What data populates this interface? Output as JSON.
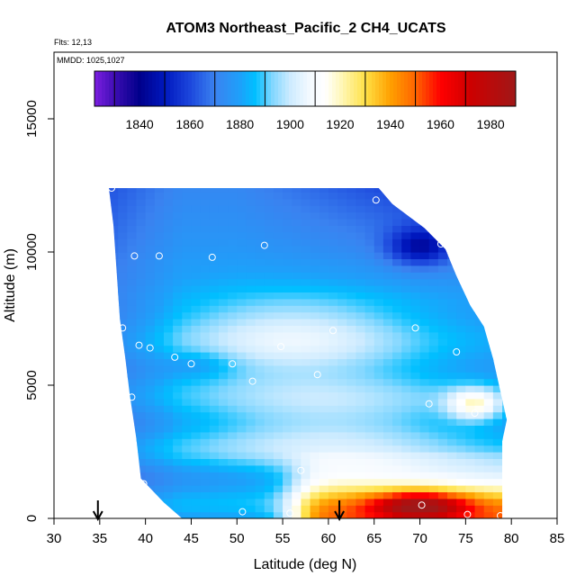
{
  "chart_data": {
    "type": "heatmap",
    "title": "ATOM3 Northeast_Pacific_2 CH4_UCATS",
    "flights_label": "Flts: 12,13",
    "dates_label": "MMDD: 1025,1027",
    "xlabel": "Latitude (deg N)",
    "ylabel": "Altitude (m)",
    "xlim": [
      30,
      85
    ],
    "ylim": [
      0,
      17500
    ],
    "x_ticks": [
      "30",
      "35",
      "40",
      "45",
      "50",
      "55",
      "60",
      "65",
      "70",
      "75",
      "80",
      "85"
    ],
    "y_ticks": [
      "0",
      "5000",
      "10000",
      "15000"
    ],
    "colorbar": {
      "range": [
        1822,
        1990
      ],
      "ticks": [
        "1840",
        "1860",
        "1880",
        "1900",
        "1920",
        "1940",
        "1960",
        "1980"
      ],
      "tick_values": [
        1840,
        1860,
        1880,
        1900,
        1920,
        1940,
        1960,
        1980
      ],
      "colors": [
        "#7b1fe0",
        "#00008b",
        "#1a3fd6",
        "#3a8ff0",
        "#00bfff",
        "#e8f8ff",
        "#ffffff",
        "#ffe34d",
        "#ff9d00",
        "#ff0000",
        "#a01818"
      ]
    },
    "arrows": [
      {
        "lat": 34.8,
        "label": "",
        "name": "arrow-lat-34.8"
      },
      {
        "lat": 61.2,
        "label": "",
        "name": "arrow-lat-61.2"
      }
    ],
    "domain_boundary": {
      "left": [
        [
          36.0,
          12400
        ],
        [
          36.5,
          11000
        ],
        [
          36.8,
          9500
        ],
        [
          37.2,
          7500
        ],
        [
          37.8,
          6000
        ],
        [
          38.3,
          4600
        ],
        [
          39.0,
          3000
        ],
        [
          39.5,
          1500
        ],
        [
          42.0,
          600
        ],
        [
          44.0,
          0
        ]
      ],
      "top_right": [
        [
          65.5,
          12400
        ],
        [
          67.0,
          11800
        ],
        [
          70.5,
          10900
        ],
        [
          72.8,
          10100
        ],
        [
          74.0,
          9100
        ],
        [
          75.5,
          8000
        ],
        [
          77.0,
          7200
        ],
        [
          78.0,
          6000
        ],
        [
          79.5,
          3700
        ],
        [
          79.0,
          2900
        ],
        [
          79.0,
          0
        ]
      ]
    },
    "observations": [
      [
        36.3,
        12400
      ],
      [
        65.2,
        11950
      ],
      [
        72.3,
        10300
      ],
      [
        53.0,
        10250
      ],
      [
        38.8,
        9850
      ],
      [
        41.5,
        9850
      ],
      [
        47.3,
        9800
      ],
      [
        37.5,
        7150
      ],
      [
        60.5,
        7050
      ],
      [
        69.5,
        7150
      ],
      [
        39.3,
        6500
      ],
      [
        40.5,
        6400
      ],
      [
        54.8,
        6450
      ],
      [
        74.0,
        6250
      ],
      [
        43.2,
        6050
      ],
      [
        45.0,
        5800
      ],
      [
        49.5,
        5800
      ],
      [
        58.8,
        5400
      ],
      [
        51.7,
        5150
      ],
      [
        38.5,
        4550
      ],
      [
        71.0,
        4300
      ],
      [
        76.0,
        3950
      ],
      [
        79.8,
        3850
      ],
      [
        57.0,
        1800
      ],
      [
        39.8,
        1300
      ],
      [
        70.2,
        500
      ],
      [
        50.6,
        250
      ],
      [
        55.8,
        200
      ],
      [
        75.2,
        150
      ],
      [
        78.8,
        100
      ]
    ]
  }
}
